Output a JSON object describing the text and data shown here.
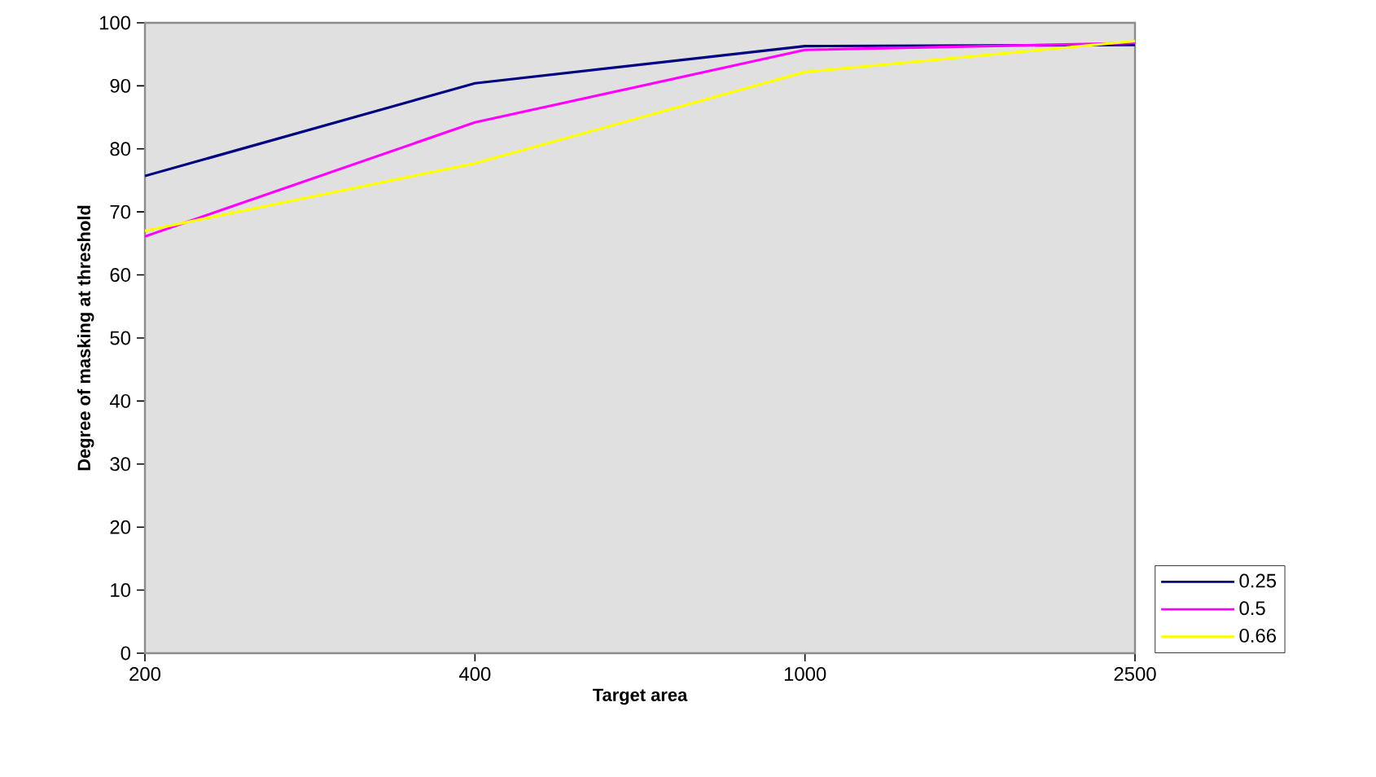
{
  "chart_data": {
    "type": "line",
    "xlabel": "Target area",
    "ylabel": "Degree of masking at threshold",
    "categories": [
      "200",
      "400",
      "1000",
      "2500"
    ],
    "series": [
      {
        "name": "0.25",
        "color": "#000080",
        "values": [
          75.7,
          90.4,
          96.3,
          96.5
        ]
      },
      {
        "name": "0.5",
        "color": "#ff00ff",
        "values": [
          66.1,
          84.2,
          95.7,
          96.8
        ]
      },
      {
        "name": "0.66",
        "color": "#ffff00",
        "values": [
          67,
          77.7,
          92.2,
          97.1
        ]
      }
    ],
    "ylim": [
      0,
      100
    ],
    "yticks": [
      0,
      10,
      20,
      30,
      40,
      50,
      60,
      70,
      80,
      90,
      100
    ],
    "grid": false,
    "legend": "bottom right",
    "marker": "none",
    "line_style": "solid"
  }
}
